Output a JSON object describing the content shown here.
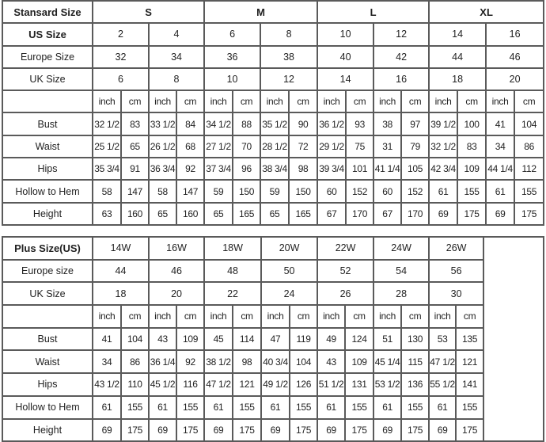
{
  "standard": {
    "header_label": "Stansard Size",
    "letter_sizes": [
      "S",
      "M",
      "L",
      "XL"
    ],
    "us_label": "US Size",
    "us_sizes": [
      "2",
      "4",
      "6",
      "8",
      "10",
      "12",
      "14",
      "16"
    ],
    "europe_label": "Europe Size",
    "europe_sizes": [
      "32",
      "34",
      "36",
      "38",
      "40",
      "42",
      "44",
      "46"
    ],
    "uk_label": "UK Size",
    "uk_sizes": [
      "6",
      "8",
      "10",
      "12",
      "14",
      "16",
      "18",
      "20"
    ],
    "unit_inch": "inch",
    "unit_cm": "cm",
    "measurements": [
      {
        "label": "Bust",
        "values": [
          "32 1/2",
          "83",
          "33 1/2",
          "84",
          "34 1/2",
          "88",
          "35 1/2",
          "90",
          "36 1/2",
          "93",
          "38",
          "97",
          "39 1/2",
          "100",
          "41",
          "104"
        ]
      },
      {
        "label": "Waist",
        "values": [
          "25 1/2",
          "65",
          "26 1/2",
          "68",
          "27 1/2",
          "70",
          "28 1/2",
          "72",
          "29 1/2",
          "75",
          "31",
          "79",
          "32 1/2",
          "83",
          "34",
          "86"
        ]
      },
      {
        "label": "Hips",
        "values": [
          "35 3/4",
          "91",
          "36 3/4",
          "92",
          "37 3/4",
          "96",
          "38 3/4",
          "98",
          "39 3/4",
          "101",
          "41 1/4",
          "105",
          "42 3/4",
          "109",
          "44 1/4",
          "112"
        ]
      },
      {
        "label": "Hollow to Hem",
        "values": [
          "58",
          "147",
          "58",
          "147",
          "59",
          "150",
          "59",
          "150",
          "60",
          "152",
          "60",
          "152",
          "61",
          "155",
          "61",
          "155"
        ]
      },
      {
        "label": "Height",
        "values": [
          "63",
          "160",
          "65",
          "160",
          "65",
          "165",
          "65",
          "165",
          "67",
          "170",
          "67",
          "170",
          "69",
          "175",
          "69",
          "175"
        ]
      }
    ]
  },
  "plus": {
    "header_label": "Plus Size(US)",
    "us_sizes": [
      "14W",
      "16W",
      "18W",
      "20W",
      "22W",
      "24W",
      "26W"
    ],
    "europe_label": "Europe size",
    "europe_sizes": [
      "44",
      "46",
      "48",
      "50",
      "52",
      "54",
      "56"
    ],
    "uk_label": "UK Size",
    "uk_sizes": [
      "18",
      "20",
      "22",
      "24",
      "26",
      "28",
      "30"
    ],
    "unit_inch": "inch",
    "unit_cm": "cm",
    "measurements": [
      {
        "label": "Bust",
        "values": [
          "41",
          "104",
          "43",
          "109",
          "45",
          "114",
          "47",
          "119",
          "49",
          "124",
          "51",
          "130",
          "53",
          "135"
        ]
      },
      {
        "label": "Waist",
        "values": [
          "34",
          "86",
          "36 1/4",
          "92",
          "38 1/2",
          "98",
          "40 3/4",
          "104",
          "43",
          "109",
          "45 1/4",
          "115",
          "47 1/2",
          "121"
        ]
      },
      {
        "label": "Hips",
        "values": [
          "43 1/2",
          "110",
          "45 1/2",
          "116",
          "47 1/2",
          "121",
          "49 1/2",
          "126",
          "51 1/2",
          "131",
          "53 1/2",
          "136",
          "55 1/2",
          "141"
        ]
      },
      {
        "label": "Hollow to Hem",
        "values": [
          "61",
          "155",
          "61",
          "155",
          "61",
          "155",
          "61",
          "155",
          "61",
          "155",
          "61",
          "155",
          "61",
          "155"
        ]
      },
      {
        "label": "Height",
        "values": [
          "69",
          "175",
          "69",
          "175",
          "69",
          "175",
          "69",
          "175",
          "69",
          "175",
          "69",
          "175",
          "69",
          "175"
        ]
      }
    ]
  }
}
